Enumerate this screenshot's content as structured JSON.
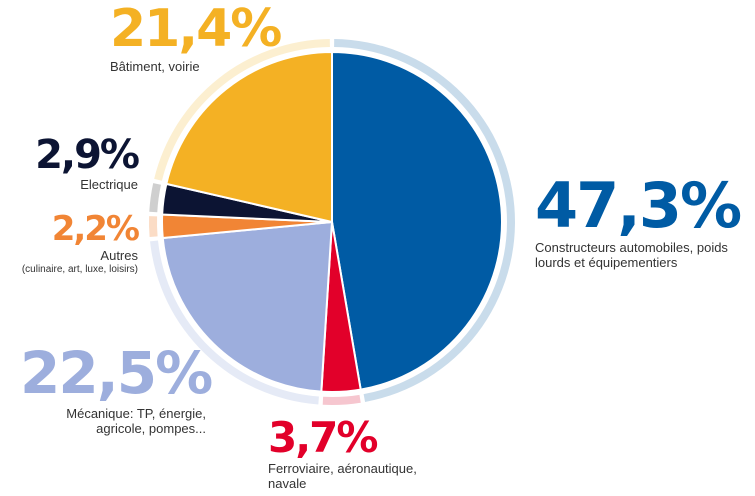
{
  "chart_data": {
    "type": "pie",
    "title": "",
    "slices": [
      {
        "value": 47.3,
        "pct_label": "47,3%",
        "label": "Constructeurs automobiles, poids lourds et équipementiers",
        "color": "#005ba4",
        "ring": "#c9dceb"
      },
      {
        "value": 3.7,
        "pct_label": "3,7%",
        "label": "Ferroviaire, aéronautique, navale",
        "color": "#e2002a",
        "ring": "#f6c6cf"
      },
      {
        "value": 22.5,
        "pct_label": "22,5%",
        "label": "Mécanique: TP, énergie, agricole, pompes...",
        "color": "#9daedd",
        "ring": "#e5eaf6"
      },
      {
        "value": 2.2,
        "pct_label": "2,2%",
        "label": "Autres",
        "sublabel": "(culinaire, art,  luxe, loisirs)",
        "color": "#f18535",
        "ring": "#fbdcc5"
      },
      {
        "value": 2.9,
        "pct_label": "2,9%",
        "label": "Electrique",
        "color": "#0c1433",
        "ring": "#cfcfcf"
      },
      {
        "value": 21.4,
        "pct_label": "21,4%",
        "label": "Bâtiment, voirie",
        "color": "#f4b124",
        "ring": "#fcefd0"
      }
    ]
  }
}
